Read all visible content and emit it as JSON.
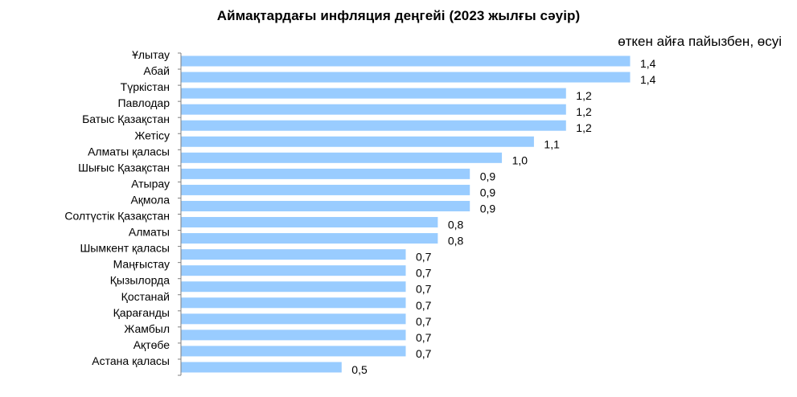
{
  "chart_data": {
    "type": "bar",
    "orientation": "horizontal",
    "title": "Аймақтардағы  инфляция деңгейі (2023 жылғы сәуір)",
    "subtitle": "өткен айға пайызбен,  өсуі",
    "categories": [
      "Ұлытау",
      "Абай",
      "Түркістан",
      "Павлодар",
      "Батыс Қазақстан",
      "Жетісу",
      "Алматы қаласы",
      "Шығыс Қазақстан",
      "Атырау",
      "Ақмола",
      "Солтүстік Қазақстан",
      "Алматы",
      "Шымкент қаласы",
      "Маңғыстау",
      "Қызылорда",
      "Қостанай",
      "Қарағанды",
      "Жамбыл",
      "Ақтөбе",
      "Астана қаласы"
    ],
    "values": [
      1.4,
      1.4,
      1.2,
      1.2,
      1.2,
      1.1,
      1.0,
      0.9,
      0.9,
      0.9,
      0.8,
      0.8,
      0.7,
      0.7,
      0.7,
      0.7,
      0.7,
      0.7,
      0.7,
      0.5
    ],
    "value_labels": [
      "1,4",
      "1,4",
      "1,2",
      "1,2",
      "1,2",
      "1,1",
      "1,0",
      "0,9",
      "0,9",
      "0,9",
      "0,8",
      "0,8",
      "0,7",
      "0,7",
      "0,7",
      "0,7",
      "0,7",
      "0,7",
      "0,7",
      "0,5"
    ],
    "xlim": [
      0,
      1.4
    ],
    "grid": false,
    "legend": "none",
    "bar_color": "#99CCFF",
    "axis_color": "#808080"
  }
}
